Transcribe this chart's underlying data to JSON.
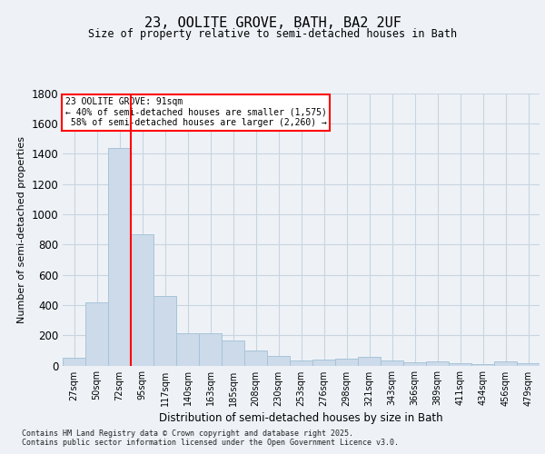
{
  "title": "23, OOLITE GROVE, BATH, BA2 2UF",
  "subtitle": "Size of property relative to semi-detached houses in Bath",
  "xlabel": "Distribution of semi-detached houses by size in Bath",
  "ylabel": "Number of semi-detached properties",
  "bin_labels": [
    "27sqm",
    "50sqm",
    "72sqm",
    "95sqm",
    "117sqm",
    "140sqm",
    "163sqm",
    "185sqm",
    "208sqm",
    "230sqm",
    "253sqm",
    "276sqm",
    "298sqm",
    "321sqm",
    "343sqm",
    "366sqm",
    "389sqm",
    "411sqm",
    "434sqm",
    "456sqm",
    "479sqm"
  ],
  "bar_values": [
    50,
    415,
    1440,
    870,
    460,
    215,
    215,
    165,
    100,
    65,
    35,
    40,
    45,
    55,
    35,
    20,
    25,
    15,
    10,
    30,
    15
  ],
  "bar_color": "#ccdaea",
  "bar_edge_color": "#a8c4d8",
  "vline_bar_index": 2,
  "property_label": "23 OOLITE GROVE: 91sqm",
  "pct_smaller": 40,
  "n_smaller": 1575,
  "pct_larger": 58,
  "n_larger": 2260,
  "ylim": [
    0,
    1800
  ],
  "yticks": [
    0,
    200,
    400,
    600,
    800,
    1000,
    1200,
    1400,
    1600,
    1800
  ],
  "background_color": "#eef2f7",
  "plot_bg_color": "#eef2f7",
  "grid_color": "#c8d4e0",
  "footer_line1": "Contains HM Land Registry data © Crown copyright and database right 2025.",
  "footer_line2": "Contains public sector information licensed under the Open Government Licence v3.0."
}
